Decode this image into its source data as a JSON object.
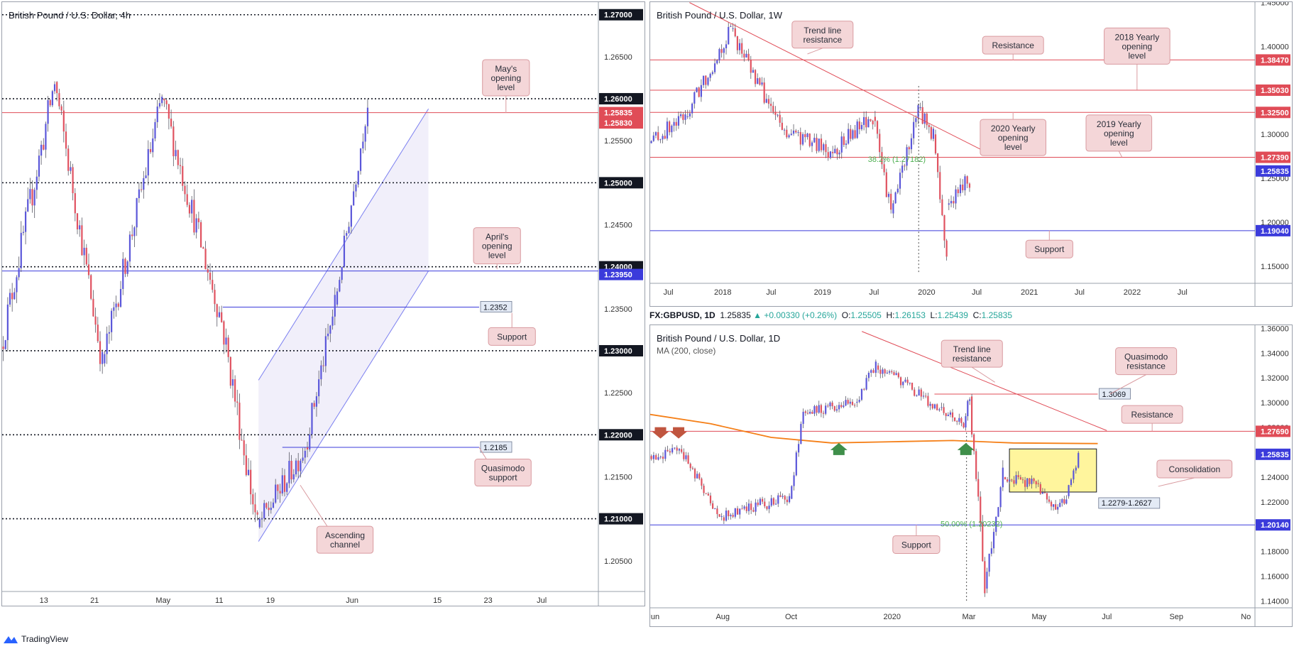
{
  "colors": {
    "bull": "#5b57d9",
    "bear": "#e05260",
    "wick": "#5a5a66",
    "hline_red": "#e04c57",
    "hline_blue": "#3b3bdb",
    "dotted": "#131722",
    "callout_bg": "#f4d6d8",
    "callout_border": "#d99ba0",
    "ma": "#f57f17",
    "channel": "#7b7ff0",
    "yellow": "#fff59d",
    "fib_green": "#4caf50"
  },
  "footer": {
    "brand": "TradingView",
    "logo_icon": "tradingview-logo-icon"
  },
  "infobar": {
    "symbol": "FX:GBPUSD, 1D",
    "last": "1.25835",
    "change": "+0.00330 (+0.26%)",
    "open_label": "O:",
    "open": "1.25505",
    "high_label": "H:",
    "high": "1.26153",
    "low_label": "L:",
    "low": "1.25439",
    "close_label": "C:",
    "close": "1.25835"
  },
  "chart_data": [
    {
      "id": "h4",
      "type": "candlestick",
      "title": "British Pound / U.S. Dollar, 4h",
      "ylim": [
        1.2005,
        1.2715
      ],
      "y_ticks": [
        "1.27000",
        "1.26500",
        "1.26000",
        "1.25500",
        "1.25000",
        "1.24500",
        "1.24000",
        "1.23500",
        "1.23000",
        "1.22500",
        "1.22000",
        "1.21500",
        "1.21000",
        "1.20500"
      ],
      "x_ticks": [
        {
          "label": "13",
          "x": 0.07
        },
        {
          "label": "21",
          "x": 0.155
        },
        {
          "label": "May",
          "x": 0.27
        },
        {
          "label": "11",
          "x": 0.364
        },
        {
          "label": "19",
          "x": 0.45
        },
        {
          "label": "Jun",
          "x": 0.587
        },
        {
          "label": "15",
          "x": 0.73
        },
        {
          "label": "23",
          "x": 0.815
        },
        {
          "label": "Jul",
          "x": 0.905
        }
      ],
      "x_range": [
        0,
        1
      ],
      "levels": [
        {
          "y": 1.27,
          "style": "dotted",
          "color": "#131722",
          "label": "1.27000",
          "badge": "#131722",
          "bold": true
        },
        {
          "y": 1.26,
          "style": "dotted",
          "color": "#131722",
          "label": "1.26000",
          "badge": "#131722",
          "bold": true
        },
        {
          "y": 1.25835,
          "style": "solid",
          "color": "#e04c57",
          "label": "1.25835",
          "badge": "#e04c57"
        },
        {
          "y": 1.2583,
          "style": "none",
          "color": "#e04c57",
          "label": "1.25830",
          "badge": "#e04c57",
          "offset": 14
        },
        {
          "y": 1.25,
          "style": "dotted",
          "color": "#131722",
          "label": "1.25000",
          "badge": "#131722",
          "bold": true
        },
        {
          "y": 1.24,
          "style": "dotted",
          "color": "#131722",
          "label": "1.24000",
          "badge": "#131722",
          "bold": true
        },
        {
          "y": 1.2395,
          "style": "solid",
          "color": "#3b3bdb",
          "label": "1.23950",
          "badge": "#3b3bdb",
          "offset": 5
        },
        {
          "y": 1.23,
          "style": "dotted",
          "color": "#131722",
          "label": "1.23000",
          "badge": "#131722",
          "bold": true
        },
        {
          "y": 1.22,
          "style": "dotted",
          "color": "#131722",
          "label": "1.22000",
          "badge": "#131722",
          "bold": true
        },
        {
          "y": 1.21,
          "style": "dotted",
          "color": "#131722",
          "label": "1.21000",
          "badge": "#131722",
          "bold": true
        }
      ],
      "segments": [
        {
          "y": 1.2352,
          "x0": 0.37,
          "x1": 0.8,
          "color": "#3b3bdb",
          "tag": "1.2352"
        },
        {
          "y": 1.2185,
          "x0": 0.47,
          "x1": 0.8,
          "color": "#3b3bdb",
          "tag": "1.2185"
        }
      ],
      "callouts": [
        {
          "text": "May's opening level",
          "x": 0.845,
          "y": 1.2625,
          "tail_x": 0.845,
          "tail_y": 1.2583
        },
        {
          "text": "April's opening level",
          "x": 0.83,
          "y": 1.2425,
          "tail_x": 0.83,
          "tail_y": 1.2397
        },
        {
          "text": "Support",
          "x": 0.855,
          "y": 1.2317,
          "tail_x": 0.855,
          "tail_y": 1.2345
        },
        {
          "text": "Quasimodo support",
          "x": 0.84,
          "y": 1.2155,
          "tail_x": 0.8,
          "tail_y": 1.2185
        },
        {
          "text": "Ascending channel",
          "x": 0.575,
          "y": 1.2075,
          "tail_x": 0.5,
          "tail_y": 1.214
        }
      ],
      "channel": {
        "upper": [
          [
            0.43,
            1.2265
          ],
          [
            0.715,
            1.2588
          ]
        ],
        "lower": [
          [
            0.43,
            1.2073
          ],
          [
            0.715,
            1.2395
          ]
        ]
      },
      "candles_seed": [
        {
          "x0": 0.0,
          "x1": 0.09,
          "from": 1.2305,
          "to": 1.262,
          "vol": 0.0025
        },
        {
          "x0": 0.09,
          "x1": 0.17,
          "from": 1.262,
          "to": 1.2285,
          "vol": 0.0022
        },
        {
          "x0": 0.17,
          "x1": 0.27,
          "from": 1.2285,
          "to": 1.26,
          "vol": 0.0022
        },
        {
          "x0": 0.27,
          "x1": 0.37,
          "from": 1.26,
          "to": 1.2335,
          "vol": 0.0022
        },
        {
          "x0": 0.37,
          "x1": 0.43,
          "from": 1.2335,
          "to": 1.209,
          "vol": 0.0025
        },
        {
          "x0": 0.43,
          "x1": 0.51,
          "from": 1.209,
          "to": 1.2185,
          "vol": 0.002
        },
        {
          "x0": 0.51,
          "x1": 0.56,
          "from": 1.2185,
          "to": 1.2355,
          "vol": 0.002
        },
        {
          "x0": 0.56,
          "x1": 0.615,
          "from": 1.2355,
          "to": 1.2595,
          "vol": 0.0018
        }
      ]
    },
    {
      "id": "w1",
      "type": "candlestick",
      "title": "British Pound / U.S. Dollar, 1W",
      "ylim": [
        1.1305,
        1.4505
      ],
      "y_ticks": [
        "1.45000",
        "1.40000",
        "1.35000",
        "1.30000",
        "1.25000",
        "1.20000",
        "1.15000"
      ],
      "x_ticks": [
        {
          "label": "Jul",
          "x": 0.03
        },
        {
          "label": "2018",
          "x": 0.12
        },
        {
          "label": "Jul",
          "x": 0.2
        },
        {
          "label": "2019",
          "x": 0.285
        },
        {
          "label": "Jul",
          "x": 0.37
        },
        {
          "label": "2020",
          "x": 0.457
        },
        {
          "label": "Jul",
          "x": 0.54
        },
        {
          "label": "2021",
          "x": 0.627
        },
        {
          "label": "Jul",
          "x": 0.71
        },
        {
          "label": "2022",
          "x": 0.797
        },
        {
          "label": "Jul",
          "x": 0.88
        }
      ],
      "levels": [
        {
          "y": 1.3847,
          "style": "solid",
          "color": "#e04c57",
          "label": "1.38470",
          "badge": "#e04c57"
        },
        {
          "y": 1.3503,
          "style": "solid",
          "color": "#e04c57",
          "label": "1.35030",
          "badge": "#e04c57"
        },
        {
          "y": 1.325,
          "style": "solid",
          "color": "#e04c57",
          "label": "1.32500",
          "badge": "#e04c57"
        },
        {
          "y": 1.2739,
          "style": "solid",
          "color": "#e04c57",
          "label": "1.27390",
          "badge": "#e04c57"
        },
        {
          "y": 1.25835,
          "style": "none",
          "color": "#3b3bdb",
          "label": "1.25835",
          "badge": "#3b3bdb"
        },
        {
          "y": 1.1904,
          "style": "solid",
          "color": "#3b3bdb",
          "label": "1.19040",
          "badge": "#3b3bdb"
        }
      ],
      "fib": {
        "text": "38.2% (1.27182)",
        "y": 1.2718,
        "x": 0.36
      },
      "trendline": [
        [
          0.065,
          1.45
        ],
        [
          0.565,
          1.2765
        ]
      ],
      "vertical_dotted": {
        "x": 0.444,
        "y0": 1.355,
        "y1": 1.141
      },
      "callouts": [
        {
          "text": "Trend line resistance",
          "x": 0.285,
          "y": 1.4135,
          "tail_x": 0.26,
          "tail_y": 1.3915
        },
        {
          "text": "Resistance",
          "x": 0.6,
          "y": 1.4015,
          "tail_x": 0.6,
          "tail_y": 1.3847
        },
        {
          "text": "2018 Yearly opening level",
          "x": 0.805,
          "y": 1.4005,
          "tail_x": 0.805,
          "tail_y": 1.3505
        },
        {
          "text": "2020 Yearly opening level",
          "x": 0.6,
          "y": 1.2965,
          "tail_x": 0.6,
          "tail_y": 1.3255
        },
        {
          "text": "2019 Yearly opening level",
          "x": 0.775,
          "y": 1.3015,
          "tail_x": 0.78,
          "tail_y": 1.2742
        },
        {
          "text": "Support",
          "x": 0.66,
          "y": 1.1695,
          "tail_x": 0.66,
          "tail_y": 1.1905
        }
      ],
      "candles_seed": [
        {
          "x0": 0.0,
          "x1": 0.06,
          "from": 1.29,
          "to": 1.32,
          "vol": 0.012
        },
        {
          "x0": 0.06,
          "x1": 0.135,
          "from": 1.32,
          "to": 1.42,
          "vol": 0.013
        },
        {
          "x0": 0.135,
          "x1": 0.22,
          "from": 1.42,
          "to": 1.305,
          "vol": 0.012
        },
        {
          "x0": 0.22,
          "x1": 0.3,
          "from": 1.305,
          "to": 1.28,
          "vol": 0.012
        },
        {
          "x0": 0.3,
          "x1": 0.37,
          "from": 1.28,
          "to": 1.32,
          "vol": 0.012
        },
        {
          "x0": 0.37,
          "x1": 0.4,
          "from": 1.32,
          "to": 1.21,
          "vol": 0.012
        },
        {
          "x0": 0.4,
          "x1": 0.445,
          "from": 1.21,
          "to": 1.33,
          "vol": 0.012
        },
        {
          "x0": 0.445,
          "x1": 0.47,
          "from": 1.33,
          "to": 1.3,
          "vol": 0.012
        },
        {
          "x0": 0.47,
          "x1": 0.492,
          "from": 1.3,
          "to": 1.16,
          "vol": 0.015
        },
        {
          "x0": 0.492,
          "x1": 0.53,
          "from": 1.22,
          "to": 1.2485,
          "vol": 0.012
        }
      ]
    },
    {
      "id": "d1",
      "type": "candlestick",
      "title": "British Pound / U.S. Dollar, 1D",
      "indicator": "MA (200, close)",
      "ylim": [
        1.1345,
        1.3625
      ],
      "y_ticks": [
        "1.36000",
        "1.34000",
        "1.32000",
        "1.30000",
        "1.28000",
        "1.26000",
        "1.24000",
        "1.22000",
        "1.20000",
        "1.18000",
        "1.16000",
        "1.14000"
      ],
      "x_ticks": [
        {
          "label": "Jun",
          "x": 0.005
        },
        {
          "label": "Aug",
          "x": 0.12
        },
        {
          "label": "Oct",
          "x": 0.233
        },
        {
          "label": "2020",
          "x": 0.4
        },
        {
          "label": "Mar",
          "x": 0.527
        },
        {
          "label": "May",
          "x": 0.643
        },
        {
          "label": "Jul",
          "x": 0.755
        },
        {
          "label": "Sep",
          "x": 0.87
        },
        {
          "label": "No",
          "x": 0.985
        }
      ],
      "levels": [
        {
          "y": 1.2769,
          "style": "solid",
          "color": "#e04c57",
          "label": "1.27690",
          "badge": "#e04c57"
        },
        {
          "y": 1.25835,
          "style": "none",
          "color": "#3b3bdb",
          "label": "1.25835",
          "badge": "#3b3bdb"
        },
        {
          "y": 1.2014,
          "style": "solid",
          "color": "#3b3bdb",
          "label": "1.20140",
          "badge": "#3b3bdb"
        }
      ],
      "segments": [
        {
          "y": 1.3069,
          "x0": 0.47,
          "x1": 0.74,
          "color": "#e04c57",
          "tag": "1.3069"
        }
      ],
      "zone": {
        "x0": 0.594,
        "x1": 0.738,
        "y0": 1.2279,
        "y1": 1.2627,
        "tag": "1.2279-1.2627"
      },
      "fib": {
        "text": "50.00% (1.20232)",
        "y": 1.2023,
        "x": 0.48
      },
      "trendline": [
        [
          0.35,
          1.3575
        ],
        [
          0.755,
          1.2775
        ]
      ],
      "vertical_dotted": {
        "x": 0.523,
        "y0": 1.276,
        "y1": 1.14
      },
      "ma": [
        [
          0,
          1.2905
        ],
        [
          0.1,
          1.283
        ],
        [
          0.2,
          1.272
        ],
        [
          0.3,
          1.2675
        ],
        [
          0.4,
          1.2685
        ],
        [
          0.5,
          1.2695
        ],
        [
          0.6,
          1.2675
        ],
        [
          0.74,
          1.267
        ]
      ],
      "arrows_down": [
        0.017,
        0.047
      ],
      "arrows_up": [
        0.312,
        0.522
      ],
      "callouts": [
        {
          "text": "Trend line resistance",
          "x": 0.532,
          "y": 1.3395,
          "tail_x": 0.57,
          "tail_y": 1.3165
        },
        {
          "text": "Quasimodo resistance",
          "x": 0.82,
          "y": 1.3335,
          "tail_x": 0.76,
          "tail_y": 1.307
        },
        {
          "text": "Resistance",
          "x": 0.83,
          "y": 1.2905,
          "tail_x": 0.83,
          "tail_y": 1.277
        },
        {
          "text": "Consolidation",
          "x": 0.9,
          "y": 1.2465,
          "tail_x": 0.84,
          "tail_y": 1.2325
        },
        {
          "text": "Support",
          "x": 0.44,
          "y": 1.1855,
          "tail_x": 0.44,
          "tail_y": 1.2015
        }
      ],
      "candles_seed": [
        {
          "x0": 0.0,
          "x1": 0.05,
          "from": 1.257,
          "to": 1.2625,
          "vol": 0.006
        },
        {
          "x0": 0.05,
          "x1": 0.12,
          "from": 1.2625,
          "to": 1.2075,
          "vol": 0.006
        },
        {
          "x0": 0.12,
          "x1": 0.18,
          "from": 1.2075,
          "to": 1.2175,
          "vol": 0.006
        },
        {
          "x0": 0.18,
          "x1": 0.232,
          "from": 1.2175,
          "to": 1.2225,
          "vol": 0.006
        },
        {
          "x0": 0.232,
          "x1": 0.255,
          "from": 1.2225,
          "to": 1.293,
          "vol": 0.006
        },
        {
          "x0": 0.255,
          "x1": 0.34,
          "from": 1.293,
          "to": 1.3,
          "vol": 0.006
        },
        {
          "x0": 0.34,
          "x1": 0.375,
          "from": 1.3,
          "to": 1.33,
          "vol": 0.006
        },
        {
          "x0": 0.375,
          "x1": 0.48,
          "from": 1.33,
          "to": 1.296,
          "vol": 0.006
        },
        {
          "x0": 0.48,
          "x1": 0.52,
          "from": 1.296,
          "to": 1.28,
          "vol": 0.006
        },
        {
          "x0": 0.52,
          "x1": 0.53,
          "from": 1.28,
          "to": 1.305,
          "vol": 0.008
        },
        {
          "x0": 0.53,
          "x1": 0.555,
          "from": 1.305,
          "to": 1.15,
          "vol": 0.012
        },
        {
          "x0": 0.555,
          "x1": 0.585,
          "from": 1.15,
          "to": 1.24,
          "vol": 0.01
        },
        {
          "x0": 0.585,
          "x1": 0.64,
          "from": 1.24,
          "to": 1.235,
          "vol": 0.006
        },
        {
          "x0": 0.64,
          "x1": 0.665,
          "from": 1.235,
          "to": 1.216,
          "vol": 0.006
        },
        {
          "x0": 0.665,
          "x1": 0.69,
          "from": 1.216,
          "to": 1.2245,
          "vol": 0.006
        },
        {
          "x0": 0.69,
          "x1": 0.71,
          "from": 1.2245,
          "to": 1.257,
          "vol": 0.006
        }
      ]
    }
  ]
}
